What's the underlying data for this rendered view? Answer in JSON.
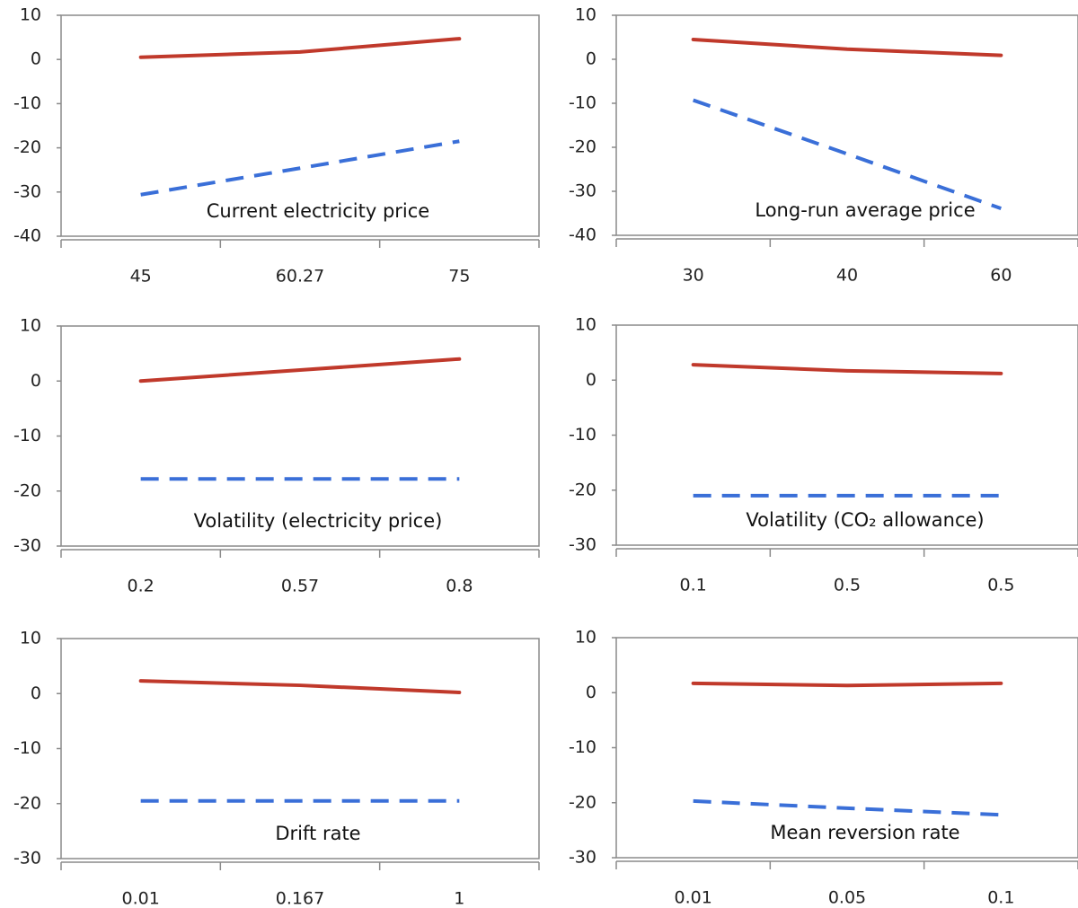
{
  "chart_data": [
    {
      "type": "line",
      "annotation": "Current electricity price",
      "categories": [
        "45",
        "60.27",
        "75"
      ],
      "series": [
        {
          "color": "#c0392b",
          "style": "solid",
          "values": [
            0.5,
            1.7,
            4.7
          ]
        },
        {
          "color": "#3a6fd8",
          "style": "dashed",
          "values": [
            -30.6,
            -24.6,
            -18.5
          ]
        }
      ],
      "ylim": [
        -40,
        10
      ],
      "yticks": [
        10,
        0,
        -10,
        -20,
        -30,
        -40
      ]
    },
    {
      "type": "line",
      "annotation": "Long-run average price",
      "categories": [
        "30",
        "40",
        "60"
      ],
      "series": [
        {
          "color": "#c0392b",
          "style": "solid",
          "values": [
            4.5,
            2.3,
            0.9
          ]
        },
        {
          "color": "#3a6fd8",
          "style": "dashed",
          "values": [
            -9.3,
            -21.5,
            -33.9
          ]
        }
      ],
      "ylim": [
        -40,
        10
      ],
      "yticks": [
        10,
        0,
        -10,
        -20,
        -30,
        -40
      ]
    },
    {
      "type": "line",
      "annotation": "Volatility (electricity price)",
      "categories": [
        "0.2",
        "0.57",
        "0.8"
      ],
      "series": [
        {
          "color": "#c0392b",
          "style": "solid",
          "values": [
            0,
            2,
            4
          ]
        },
        {
          "color": "#3a6fd8",
          "style": "dashed",
          "values": [
            -17.8,
            -17.8,
            -17.8
          ]
        }
      ],
      "ylim": [
        -30,
        10
      ],
      "yticks": [
        10,
        0,
        -10,
        -20,
        -30
      ]
    },
    {
      "type": "line",
      "annotation": "Volatility (CO₂ allowance)",
      "categories": [
        "0.1",
        "0.5",
        "0.5"
      ],
      "series": [
        {
          "color": "#c0392b",
          "style": "solid",
          "values": [
            2.8,
            1.7,
            1.2
          ]
        },
        {
          "color": "#3a6fd8",
          "style": "dashed",
          "values": [
            -21,
            -21,
            -21
          ]
        }
      ],
      "ylim": [
        -30,
        10
      ],
      "yticks": [
        10,
        0,
        -10,
        -20,
        -30
      ]
    },
    {
      "type": "line",
      "annotation": "Drift rate",
      "categories": [
        "0.01",
        "0.167",
        "1"
      ],
      "series": [
        {
          "color": "#c0392b",
          "style": "solid",
          "values": [
            2.3,
            1.5,
            0.2
          ]
        },
        {
          "color": "#3a6fd8",
          "style": "dashed",
          "values": [
            -19.5,
            -19.5,
            -19.5
          ]
        }
      ],
      "ylim": [
        -30,
        10
      ],
      "yticks": [
        10,
        0,
        -10,
        -20,
        -30
      ]
    },
    {
      "type": "line",
      "annotation": "Mean reversion rate",
      "categories": [
        "0.01",
        "0.05",
        "0.1"
      ],
      "series": [
        {
          "color": "#c0392b",
          "style": "solid",
          "values": [
            1.7,
            1.3,
            1.7
          ]
        },
        {
          "color": "#3a6fd8",
          "style": "dashed",
          "values": [
            -19.7,
            -21,
            -22.2
          ]
        }
      ],
      "ylim": [
        -30,
        10
      ],
      "yticks": [
        10,
        0,
        -10,
        -20,
        -30
      ]
    }
  ]
}
